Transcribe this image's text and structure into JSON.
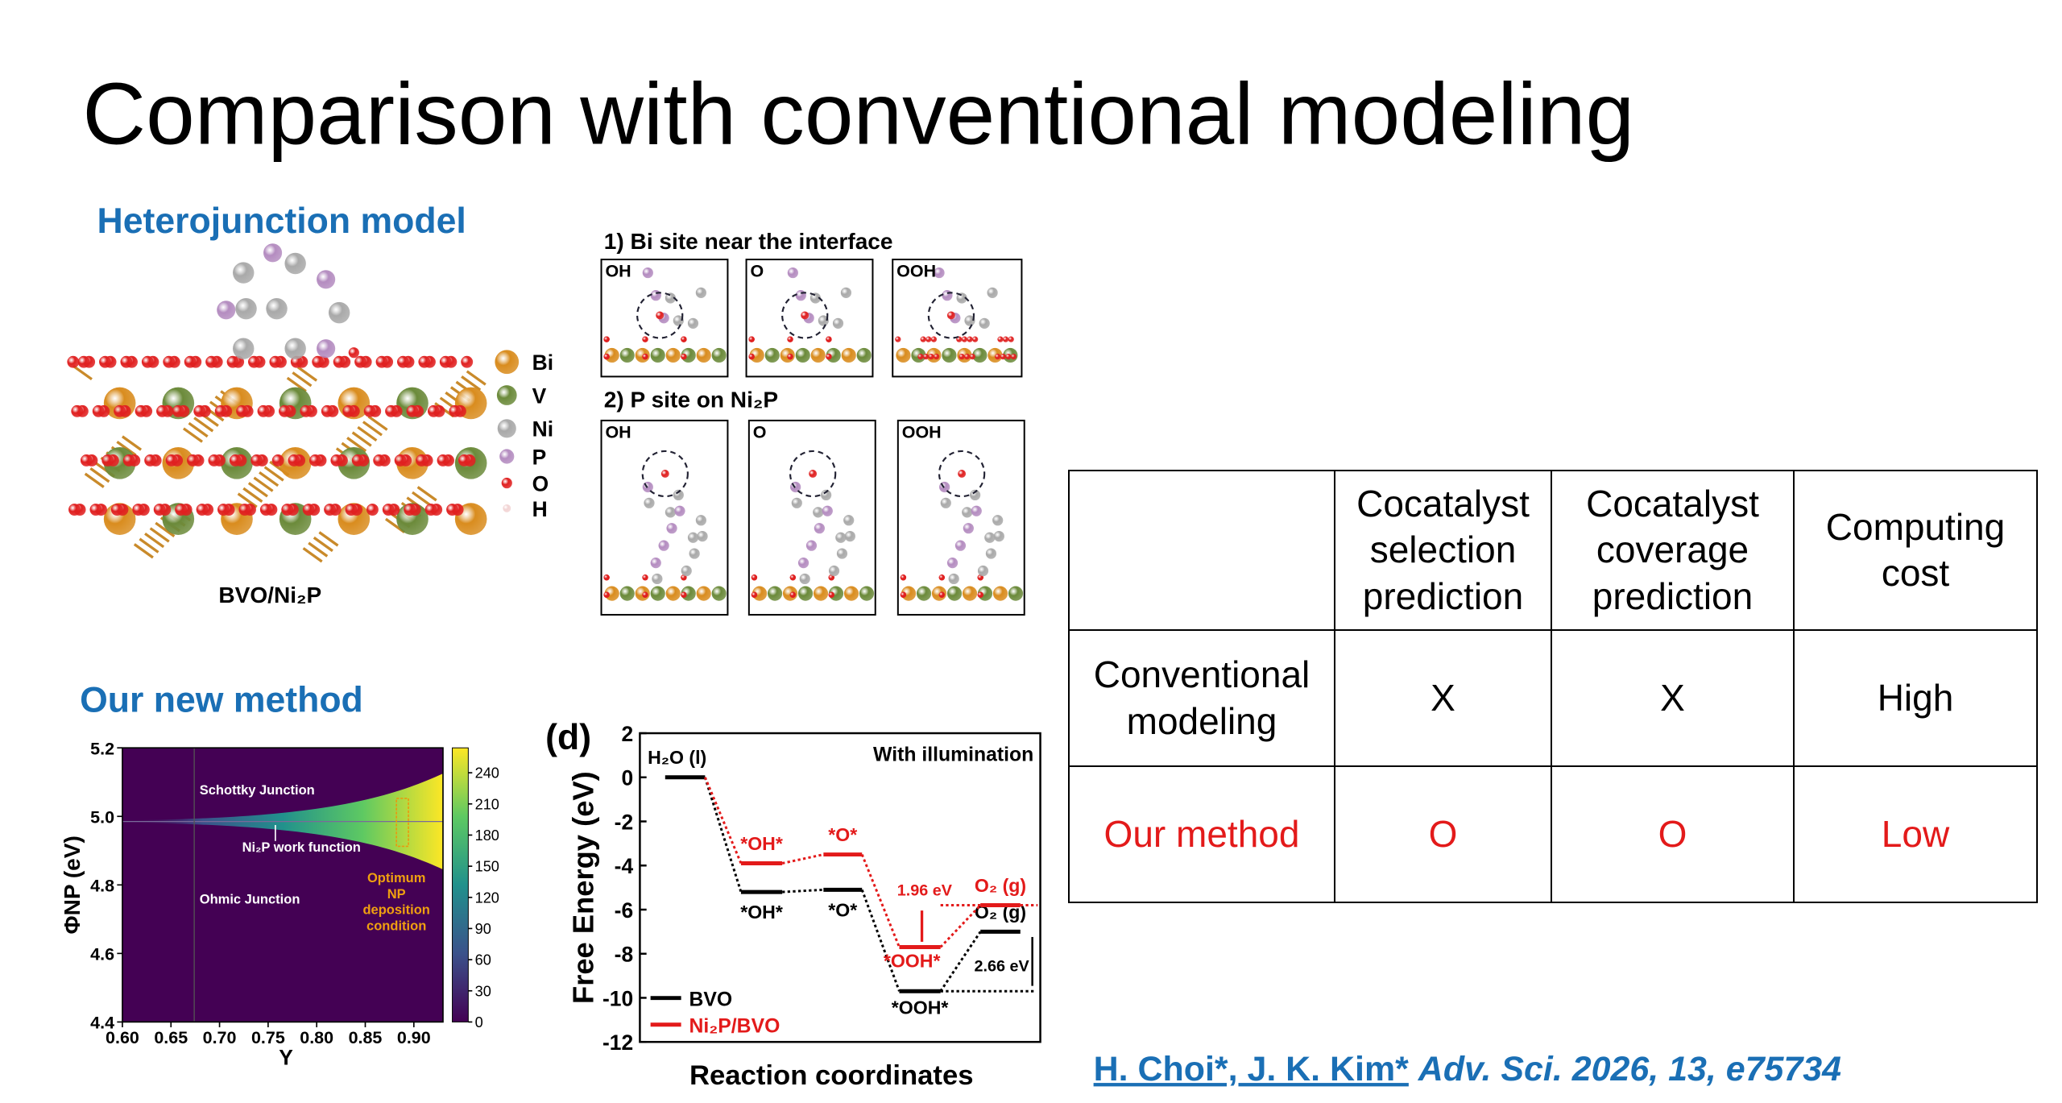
{
  "title": "Comparison with conventional modeling",
  "heterojunction": {
    "heading": "Heterojunction model",
    "caption": "BVO/Ni₂P",
    "legend": [
      {
        "name": "Bi",
        "color": "#d98c1e"
      },
      {
        "name": "V",
        "color": "#6b8a3a"
      },
      {
        "name": "Ni",
        "color": "#a9a9a9"
      },
      {
        "name": "P",
        "color": "#b48cc0"
      },
      {
        "name": "O",
        "color": "#e02020"
      },
      {
        "name": "H",
        "color": "#f2d4d4"
      }
    ]
  },
  "sites": [
    {
      "title": "1) Bi site near the interface",
      "panels": [
        "OH",
        "O",
        "OOH"
      ]
    },
    {
      "title": "2) P site on Ni₂P",
      "panels": [
        "OH",
        "O",
        "OOH"
      ]
    }
  ],
  "new_method": {
    "heading": "Our new method",
    "chart_data": {
      "type": "heatmap",
      "xlabel": "Y",
      "ylabel": "ΦNP (eV)",
      "xlim": [
        0.6,
        0.93
      ],
      "ylim": [
        4.4,
        5.2
      ],
      "xticks": [
        {
          "value": 0.6,
          "label": "0.60"
        },
        0.65,
        {
          "value": 0.7,
          "label": "0.70"
        },
        0.75,
        {
          "value": 0.8,
          "label": "0.80"
        },
        0.85,
        {
          "value": 0.9,
          "label": "0.90"
        }
      ],
      "yticks": [
        4.4,
        4.6,
        4.8,
        {
          "value": 5,
          "label": "5.0"
        },
        5.2
      ],
      "colorbar": {
        "lim": [
          0,
          264
        ],
        "ticks": [
          0,
          30,
          60,
          90,
          120,
          150,
          180,
          210,
          240
        ]
      },
      "colormap": [
        "#440154",
        "#3b528b",
        "#21918c",
        "#5ec962",
        "#fde725"
      ],
      "annotations": [
        "Schottky Junction",
        "Ni₂P work function",
        "Ohmic Junction"
      ],
      "optimum_label": [
        "Optimum",
        "NP",
        "deposition",
        "condition"
      ]
    }
  },
  "free_energy": {
    "chart_data": {
      "type": "step-levels",
      "panel_label": "(d)",
      "note": "With illumination",
      "ylabel": "Free Energy (eV)",
      "xlabel": "Reaction coordinates",
      "ylim": [
        -12,
        2
      ],
      "yticks": [
        2,
        0,
        -2,
        -4,
        -6,
        -8,
        -10,
        -12
      ],
      "series": [
        {
          "name": "BVO",
          "color": "#000000",
          "values": [
            0,
            -5.2,
            -5.1,
            -9.7,
            -7.0
          ],
          "point_labels": [
            "H₂O (l)",
            "*OH*",
            "*O*",
            "*OOH*",
            "O₂ (g)"
          ]
        },
        {
          "name": "Ni₂P/BVO",
          "color": "#e31a1a",
          "values": [
            0,
            -3.9,
            -3.5,
            -7.7,
            -5.8
          ],
          "point_labels": [
            null,
            "*OH*",
            "*O*",
            "*OOH*",
            "O₂ (g)"
          ]
        }
      ],
      "annotations": [
        "1.96 eV",
        "2.66 eV"
      ]
    }
  },
  "table": {
    "columns": [
      "Cocatalyst selection prediction",
      "Cocatalyst coverage prediction",
      "Computing cost"
    ],
    "rows": [
      {
        "label": "Conventional modeling",
        "cells": [
          "X",
          "X",
          "High"
        ],
        "color": "#000000"
      },
      {
        "label": "Our method",
        "cells": [
          "O",
          "O",
          "Low"
        ],
        "color": "#e31a1a"
      }
    ]
  },
  "citation": {
    "authors": "H. Choi*, J. K. Kim*",
    "journal": "Adv. Sci. 2026, 13, e75734"
  }
}
